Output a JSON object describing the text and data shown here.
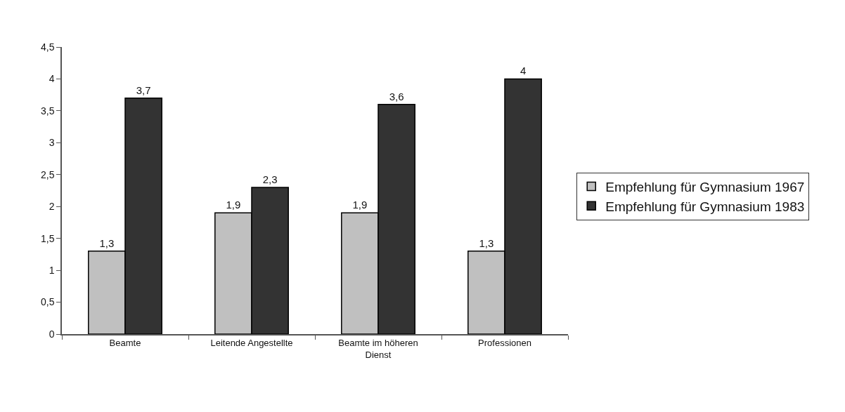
{
  "chart_data": {
    "type": "bar",
    "categories": [
      "Beamte",
      "Leitende Angestellte",
      "Beamte im höheren Dienst",
      "Professionen"
    ],
    "series": [
      {
        "name": "Empfehlung für Gymnasium 1967",
        "color": "#c0c0c0",
        "values": [
          1.3,
          1.9,
          1.9,
          1.3
        ],
        "value_labels": [
          "1,3",
          "1,9",
          "1,9",
          "1,3"
        ]
      },
      {
        "name": "Empfehlung für Gymnasium 1983",
        "color": "#333333",
        "values": [
          3.7,
          2.3,
          3.6,
          4
        ],
        "value_labels": [
          "3,7",
          "2,3",
          "3,6",
          "4"
        ]
      }
    ],
    "ylim": [
      0,
      4.5
    ],
    "yticks": [
      0,
      {
        "value": 0.5,
        "label": "0,5"
      },
      1,
      {
        "value": 1.5,
        "label": "1,5"
      },
      2,
      {
        "value": 2.5,
        "label": "2,5"
      },
      3,
      {
        "value": 3.5,
        "label": "3,5"
      },
      4,
      {
        "value": 4.5,
        "label": "4,5"
      }
    ],
    "legend": "right"
  }
}
